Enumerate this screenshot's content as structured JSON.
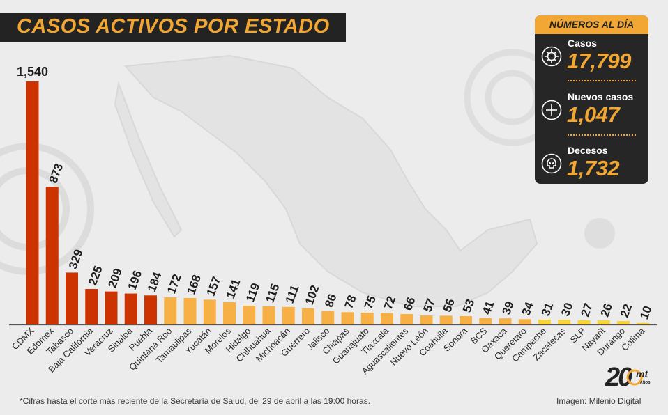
{
  "title": "CASOS ACTIVOS POR ESTADO",
  "stats": {
    "header": "NÚMEROS AL DÍA",
    "items": [
      {
        "label": "Casos",
        "value": "17,799",
        "icon": "virus-icon"
      },
      {
        "label": "Nuevos casos",
        "value": "1,047",
        "icon": "plus-circle-icon"
      },
      {
        "label": "Decesos",
        "value": "1,732",
        "icon": "skull-icon"
      }
    ]
  },
  "footnote": "*Cifras hasta el corte más reciente de la Secretaría de Salud, del 29 de abril a las 19:00 horas.",
  "credit": "Imagen: Milenio Digital",
  "logo": {
    "text": "20",
    "sub": "mt",
    "tiny": "AÑOS"
  },
  "colors": {
    "high": "#cc3300",
    "mid": "#f7b045",
    "low": "#f9d33a",
    "accent": "#f2a634",
    "dark": "#232323"
  },
  "chart_data": {
    "type": "bar",
    "categories": [
      "CDMX",
      "Edomex",
      "Tabasco",
      "Baja California",
      "Veracruz",
      "Sinaloa",
      "Puebla",
      "Quintana Roo",
      "Tamaulipas",
      "Yucatán",
      "Morelos",
      "Hidalgo",
      "Chihuahua",
      "Michoacán",
      "Guerrero",
      "Jalisco",
      "Chiapas",
      "Guanajuato",
      "Tlaxcala",
      "Aguascalientes",
      "Nuevo León",
      "Coahuila",
      "Sonora",
      "BCS",
      "Oaxaca",
      "Querétaro",
      "Campeche",
      "Zacatecas",
      "SLP",
      "Nayarit",
      "Durango",
      "Colima"
    ],
    "values": [
      1540,
      873,
      329,
      225,
      209,
      196,
      184,
      172,
      168,
      157,
      141,
      119,
      115,
      111,
      102,
      86,
      78,
      75,
      72,
      66,
      57,
      56,
      53,
      41,
      39,
      34,
      31,
      30,
      27,
      26,
      22,
      10
    ],
    "value_labels": [
      "1,540",
      "873",
      "329",
      "225",
      "209",
      "196",
      "184",
      "172",
      "168",
      "157",
      "141",
      "119",
      "115",
      "111",
      "102",
      "86",
      "78",
      "75",
      "72",
      "66",
      "57",
      "56",
      "53",
      "41",
      "39",
      "34",
      "31",
      "30",
      "27",
      "26",
      "22",
      "10"
    ],
    "color_groups": [
      "high",
      "high",
      "high",
      "high",
      "high",
      "high",
      "high",
      "mid",
      "mid",
      "mid",
      "mid",
      "mid",
      "mid",
      "mid",
      "mid",
      "mid",
      "mid",
      "mid",
      "mid",
      "mid",
      "mid",
      "mid",
      "mid",
      "mid",
      "mid",
      "mid",
      "low",
      "low",
      "low",
      "low",
      "low",
      "low"
    ],
    "ylim": [
      0,
      1540
    ],
    "grid": false,
    "legend": "none"
  }
}
